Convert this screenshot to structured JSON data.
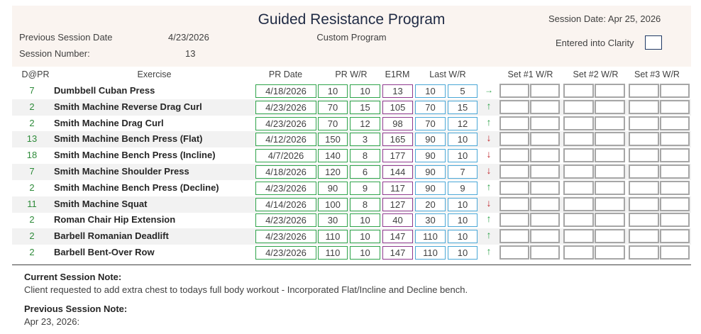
{
  "header": {
    "title": "Guided Resistance Program",
    "subtitle": "Custom Program",
    "session_date": "Session Date: Apr 25, 2026",
    "entered_into_clarity": "Entered into Clarity",
    "prev_session_date_label": "Previous Session Date",
    "prev_session_date_value": "4/23/2026",
    "session_number_label": "Session Number:",
    "session_number_value": "13"
  },
  "columns": {
    "dpr": "D@PR",
    "exercise": "Exercise",
    "pr_date": "PR Date",
    "pr_wr": "PR W/R",
    "e1rm": "E1RM",
    "last_wr": "Last W/R",
    "set1": "Set #1 W/R",
    "set2": "Set #2 W/R",
    "set3": "Set #3 W/R"
  },
  "rows": [
    {
      "dpr": "7",
      "exercise": "Dumbbell Cuban Press",
      "pr_date": "4/18/2026",
      "pr_w": "10",
      "pr_r": "10",
      "e1rm": "13",
      "last_w": "10",
      "last_r": "5",
      "trend": "flat",
      "trend_glyph": "→"
    },
    {
      "dpr": "2",
      "exercise": "Smith Machine Reverse Drag Curl",
      "pr_date": "4/23/2026",
      "pr_w": "70",
      "pr_r": "15",
      "e1rm": "105",
      "last_w": "70",
      "last_r": "15",
      "trend": "up",
      "trend_glyph": "↑"
    },
    {
      "dpr": "2",
      "exercise": "Smith Machine Drag Curl",
      "pr_date": "4/23/2026",
      "pr_w": "70",
      "pr_r": "12",
      "e1rm": "98",
      "last_w": "70",
      "last_r": "12",
      "trend": "up",
      "trend_glyph": "↑"
    },
    {
      "dpr": "13",
      "exercise": "Smith Machine Bench Press (Flat)",
      "pr_date": "4/12/2026",
      "pr_w": "150",
      "pr_r": "3",
      "e1rm": "165",
      "last_w": "90",
      "last_r": "10",
      "trend": "down",
      "trend_glyph": "↓"
    },
    {
      "dpr": "18",
      "exercise": "Smith Machine Bench Press (Incline)",
      "pr_date": "4/7/2026",
      "pr_w": "140",
      "pr_r": "8",
      "e1rm": "177",
      "last_w": "90",
      "last_r": "10",
      "trend": "down",
      "trend_glyph": "↓"
    },
    {
      "dpr": "7",
      "exercise": "Smith Machine Shoulder Press",
      "pr_date": "4/18/2026",
      "pr_w": "120",
      "pr_r": "6",
      "e1rm": "144",
      "last_w": "90",
      "last_r": "7",
      "trend": "down",
      "trend_glyph": "↓"
    },
    {
      "dpr": "2",
      "exercise": "Smith Machine Bench Press (Decline)",
      "pr_date": "4/23/2026",
      "pr_w": "90",
      "pr_r": "9",
      "e1rm": "117",
      "last_w": "90",
      "last_r": "9",
      "trend": "up",
      "trend_glyph": "↑"
    },
    {
      "dpr": "11",
      "exercise": "Smith Machine Squat",
      "pr_date": "4/14/2026",
      "pr_w": "100",
      "pr_r": "8",
      "e1rm": "127",
      "last_w": "20",
      "last_r": "10",
      "trend": "down",
      "trend_glyph": "↓"
    },
    {
      "dpr": "2",
      "exercise": "Roman Chair Hip Extension",
      "pr_date": "4/23/2026",
      "pr_w": "30",
      "pr_r": "10",
      "e1rm": "40",
      "last_w": "30",
      "last_r": "10",
      "trend": "up",
      "trend_glyph": "↑"
    },
    {
      "dpr": "2",
      "exercise": "Barbell Romanian Deadlift",
      "pr_date": "4/23/2026",
      "pr_w": "110",
      "pr_r": "10",
      "e1rm": "147",
      "last_w": "110",
      "last_r": "10",
      "trend": "up",
      "trend_glyph": "↑"
    },
    {
      "dpr": "2",
      "exercise": "Barbell Bent-Over Row",
      "pr_date": "4/23/2026",
      "pr_w": "110",
      "pr_r": "10",
      "e1rm": "147",
      "last_w": "110",
      "last_r": "10",
      "trend": "up",
      "trend_glyph": "↑"
    }
  ],
  "notes": {
    "current_label": "Current Session Note:",
    "current_text": "Client requested to add extra chest to todays full body workout - Incorporated Flat/Incline and Decline bench.",
    "previous_label": "Previous Session Note:",
    "previous_text": "Apr 23, 2026:"
  },
  "colors": {
    "header_bg": "#faf4f0",
    "green_border": "#2ea34a",
    "purple_border": "#8e3a8e",
    "blue_border": "#4aa7d6",
    "gray_border": "#a6a6a6",
    "up_arrow": "#2ea34a",
    "down_arrow": "#c0282d"
  }
}
